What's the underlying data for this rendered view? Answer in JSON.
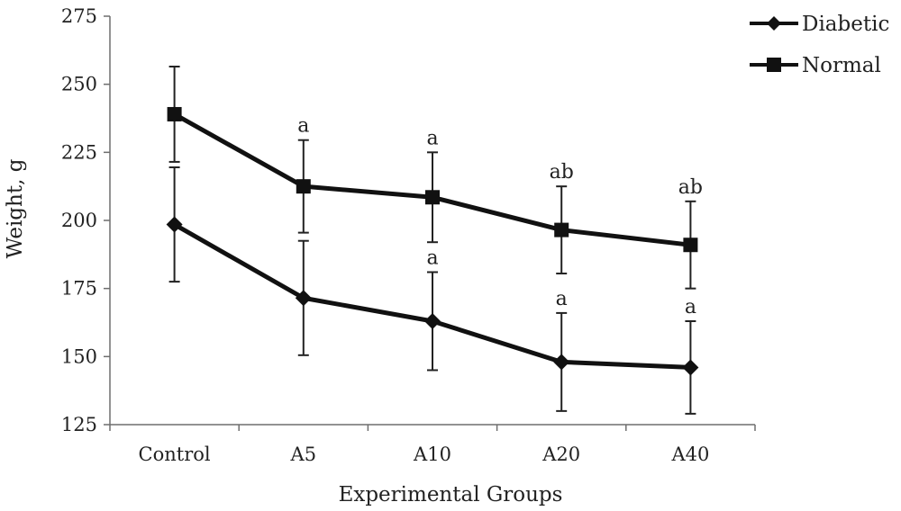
{
  "chart_data": {
    "type": "line",
    "title": "",
    "xlabel": "Experimental Groups",
    "ylabel": "Weight, g",
    "categories": [
      "Control",
      "A5",
      "A10",
      "A20",
      "A40"
    ],
    "ylim": [
      125,
      275
    ],
    "yticks": [
      125,
      150,
      175,
      200,
      225,
      250,
      275
    ],
    "grid": false,
    "legend_position": "top-right",
    "series": [
      {
        "name": "Diabetic",
        "marker": "diamond",
        "values": [
          198.5,
          171.5,
          163,
          148,
          146
        ],
        "errors": [
          21,
          21,
          18,
          18,
          17
        ],
        "annotations": [
          "",
          "",
          "a",
          "a",
          "a"
        ],
        "color": "#111111"
      },
      {
        "name": "Normal",
        "marker": "square",
        "values": [
          239,
          212.5,
          208.5,
          196.5,
          191
        ],
        "errors": [
          17.5,
          17,
          16.5,
          16,
          16
        ],
        "annotations": [
          "",
          "a",
          "a",
          "ab",
          "ab"
        ],
        "color": "#111111"
      }
    ]
  }
}
